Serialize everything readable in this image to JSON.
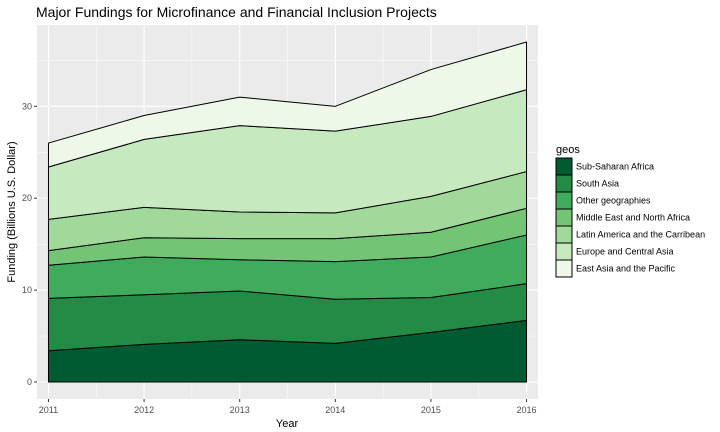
{
  "chart_data": {
    "type": "area",
    "stacked": true,
    "title": "Major Fundings for Microfinance and Financial Inclusion Projects",
    "xlabel": "Year",
    "ylabel": "Funding (Billions U.S. Dollar)",
    "x": [
      2011,
      2012,
      2013,
      2014,
      2015,
      2016
    ],
    "xlim": [
      2010.88,
      2016.12
    ],
    "ylim": [
      -1.85,
      38.85
    ],
    "yticks": [
      0,
      10,
      20,
      30
    ],
    "grid": true,
    "legend": {
      "title": "geos",
      "position": "right"
    },
    "series": [
      {
        "name": "Sub-Saharan Africa",
        "color": "#005a32",
        "values": [
          3.4,
          4.1,
          4.6,
          4.2,
          5.4,
          6.7
        ]
      },
      {
        "name": "South Asia",
        "color": "#238b45",
        "values": [
          5.7,
          5.4,
          5.3,
          4.8,
          3.8,
          4.0
        ]
      },
      {
        "name": "Other geographies",
        "color": "#41ab5d",
        "values": [
          3.6,
          4.1,
          3.4,
          4.1,
          4.4,
          5.3
        ]
      },
      {
        "name": "Middle East and North Africa",
        "color": "#74c476",
        "values": [
          1.6,
          2.1,
          2.3,
          2.5,
          2.7,
          2.9
        ]
      },
      {
        "name": "Latin America and the Carribean",
        "color": "#a1d99b",
        "values": [
          3.4,
          3.3,
          2.9,
          2.8,
          3.9,
          4.0
        ]
      },
      {
        "name": "Europe and Central Asia",
        "color": "#c7e9c0",
        "values": [
          5.7,
          7.4,
          9.4,
          8.9,
          8.7,
          8.9
        ]
      },
      {
        "name": "East Asia and the Pacific",
        "color": "#edf8e9",
        "values": [
          2.6,
          2.6,
          3.1,
          2.7,
          5.1,
          5.2
        ]
      }
    ]
  }
}
